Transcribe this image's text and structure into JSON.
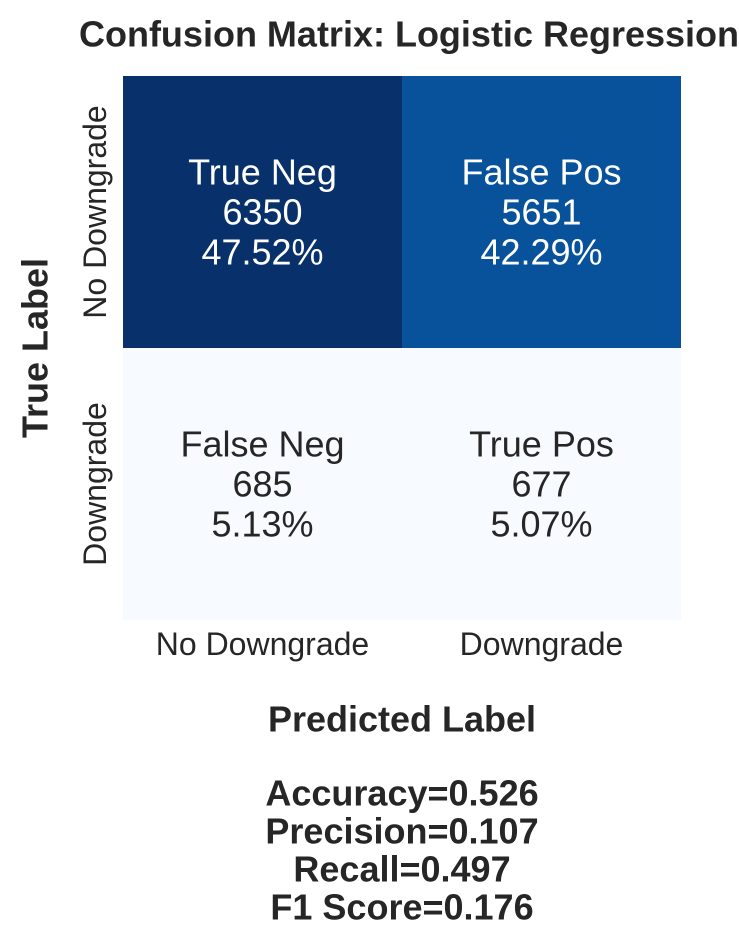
{
  "chart_data": {
    "type": "heatmap",
    "title": "Confusion Matrix: Logistic Regression",
    "xlabel": "Predicted Label",
    "ylabel": "True Label",
    "x_categories": [
      "No Downgrade",
      "Downgrade"
    ],
    "y_categories": [
      "No Downgrade",
      "Downgrade"
    ],
    "cells": [
      [
        {
          "name": "True Neg",
          "count": "6350",
          "percent": "47.52%",
          "value": 6350
        },
        {
          "name": "False Pos",
          "count": "5651",
          "percent": "42.29%",
          "value": 5651
        }
      ],
      [
        {
          "name": "False Neg",
          "count": "685",
          "percent": "5.13%",
          "value": 685
        },
        {
          "name": "True Pos",
          "count": "677",
          "percent": "5.07%",
          "value": 677
        }
      ]
    ],
    "colormap": "Blues",
    "colorbar": false,
    "metrics": [
      "Accuracy=0.526",
      "Precision=0.107",
      "Recall=0.497",
      "F1 Score=0.176"
    ]
  }
}
